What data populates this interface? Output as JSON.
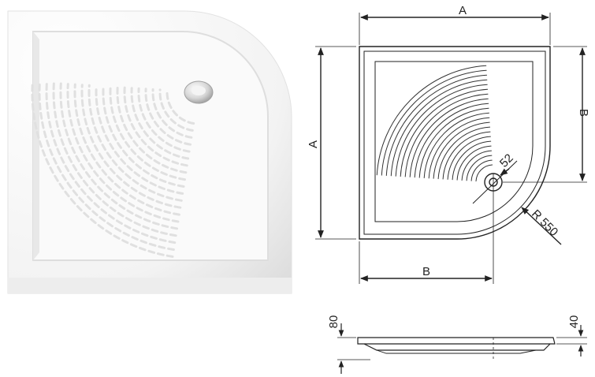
{
  "photo": {
    "subject": "quarter-round ceramic shower tray with ribbed floor and drain",
    "colors": {
      "body": "#f7f7f7",
      "shadow": "#d8d8d8",
      "drain": "#c9c9c9"
    }
  },
  "plan_view": {
    "labels": {
      "width_top": "A",
      "height_left": "A",
      "width_bottom": "B",
      "height_right": "B",
      "drain_diameter": "52",
      "corner_radius": "R 550"
    }
  },
  "section_view": {
    "labels": {
      "total_height": "80",
      "rim_height": "40"
    }
  },
  "colors": {
    "line": "#222222",
    "fill": "#ffffff"
  }
}
